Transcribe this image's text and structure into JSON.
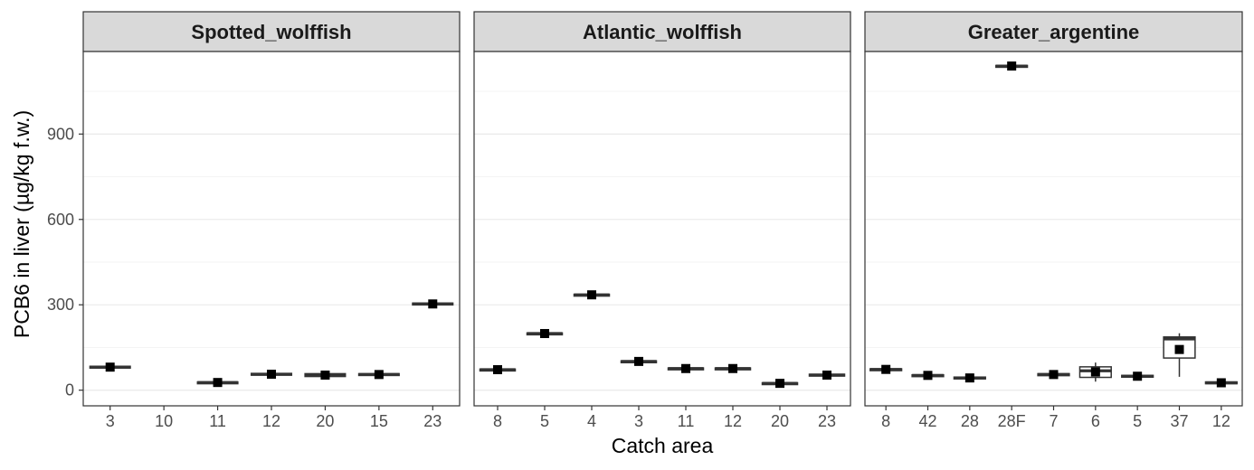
{
  "chart_data": {
    "type": "boxplot",
    "xlabel": "Catch area",
    "ylabel": "PCB6 in liver (µg/kg f.w.)",
    "ylim": [
      -55,
      1190
    ],
    "yticks": [
      0,
      300,
      600,
      900
    ],
    "grid": true,
    "colors": {
      "box_line": "#333333",
      "mean_marker": "#000000",
      "strip_fill": "#d9d9d9",
      "grid_major": "#ebebeb",
      "grid_minor": "#f3f3f3"
    },
    "panels": [
      {
        "title": "Spotted_wolffish",
        "categories": [
          "3",
          "10",
          "11",
          "12",
          "20",
          "15",
          "23"
        ],
        "boxes": [
          {
            "category": "3",
            "low": 78,
            "q1": 78,
            "median": 81,
            "q3": 84,
            "high": 84,
            "mean": 81
          },
          {
            "category": "11",
            "low": 25,
            "q1": 25,
            "median": 27,
            "q3": 29,
            "high": 29,
            "mean": 27
          },
          {
            "category": "12",
            "low": 53,
            "q1": 53,
            "median": 56,
            "q3": 59,
            "high": 59,
            "mean": 56
          },
          {
            "category": "20",
            "low": 48,
            "q1": 48,
            "median": 53,
            "q3": 58,
            "high": 58,
            "mean": 53
          },
          {
            "category": "15",
            "low": 52,
            "q1": 52,
            "median": 55,
            "q3": 58,
            "high": 58,
            "mean": 55
          },
          {
            "category": "23",
            "low": 300,
            "q1": 300,
            "median": 303,
            "q3": 306,
            "high": 306,
            "mean": 303
          }
        ]
      },
      {
        "title": "Atlantic_wolffish",
        "categories": [
          "8",
          "5",
          "4",
          "3",
          "11",
          "12",
          "20",
          "23"
        ],
        "boxes": [
          {
            "category": "8",
            "low": 70,
            "q1": 70,
            "median": 72,
            "q3": 74,
            "high": 74,
            "mean": 72
          },
          {
            "category": "5",
            "low": 197,
            "q1": 197,
            "median": 199,
            "q3": 201,
            "high": 201,
            "mean": 199
          },
          {
            "category": "4",
            "low": 333,
            "q1": 333,
            "median": 335,
            "q3": 337,
            "high": 337,
            "mean": 335
          },
          {
            "category": "3",
            "low": 99,
            "q1": 99,
            "median": 101,
            "q3": 103,
            "high": 103,
            "mean": 101
          },
          {
            "category": "11",
            "low": 74,
            "q1": 74,
            "median": 76,
            "q3": 78,
            "high": 78,
            "mean": 76
          },
          {
            "category": "12",
            "low": 74,
            "q1": 74,
            "median": 76,
            "q3": 78,
            "high": 78,
            "mean": 76
          },
          {
            "category": "20",
            "low": 22,
            "q1": 22,
            "median": 24,
            "q3": 26,
            "high": 26,
            "mean": 24
          },
          {
            "category": "23",
            "low": 50,
            "q1": 50,
            "median": 53,
            "q3": 56,
            "high": 56,
            "mean": 53
          }
        ]
      },
      {
        "title": "Greater_argentine",
        "categories": [
          "8",
          "42",
          "28",
          "28F",
          "7",
          "6",
          "5",
          "37",
          "12"
        ],
        "boxes": [
          {
            "category": "8",
            "low": 71,
            "q1": 71,
            "median": 73,
            "q3": 75,
            "high": 75,
            "mean": 73
          },
          {
            "category": "42",
            "low": 50,
            "q1": 50,
            "median": 52,
            "q3": 54,
            "high": 54,
            "mean": 52
          },
          {
            "category": "28",
            "low": 40,
            "q1": 40,
            "median": 43,
            "q3": 46,
            "high": 46,
            "mean": 43
          },
          {
            "category": "28F",
            "low": 1137,
            "q1": 1137,
            "median": 1139,
            "q3": 1141,
            "high": 1141,
            "mean": 1139
          },
          {
            "category": "7",
            "low": 51,
            "q1": 51,
            "median": 55,
            "q3": 58,
            "high": 58,
            "mean": 55
          },
          {
            "category": "6",
            "low": 30,
            "q1": 45,
            "median": 68,
            "q3": 82,
            "high": 97,
            "mean": 64
          },
          {
            "category": "5",
            "low": 46,
            "q1": 46,
            "median": 49,
            "q3": 52,
            "high": 52,
            "mean": 49
          },
          {
            "category": "37",
            "low": 47,
            "q1": 113,
            "median": 180,
            "q3": 187,
            "high": 200,
            "mean": 143
          },
          {
            "category": "12",
            "low": 23,
            "q1": 23,
            "median": 26,
            "q3": 29,
            "high": 29,
            "mean": 26
          }
        ]
      }
    ]
  }
}
